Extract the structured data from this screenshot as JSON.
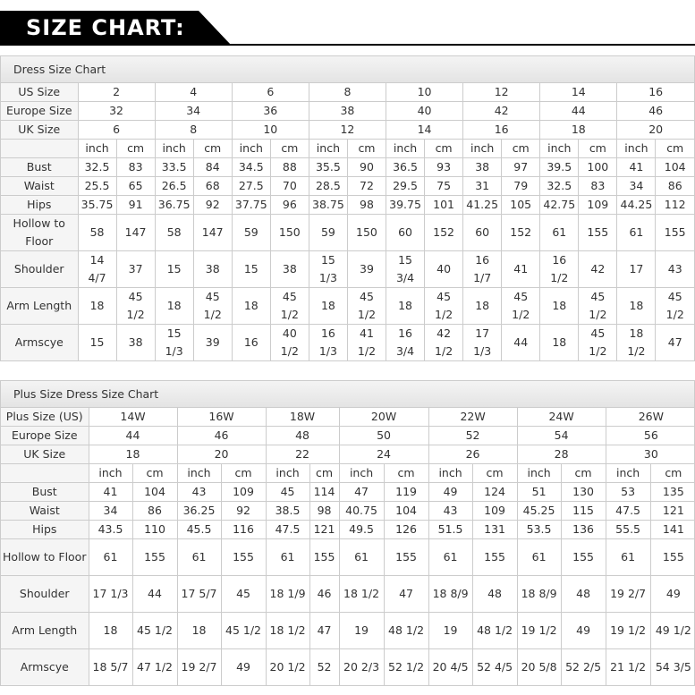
{
  "title": "SIZE CHART:",
  "tables": [
    {
      "heading": "Dress Size Chart",
      "group_rows": [
        {
          "label": "US Size",
          "values": [
            "2",
            "4",
            "6",
            "8",
            "10",
            "12",
            "14",
            "16"
          ]
        },
        {
          "label": "Europe Size",
          "values": [
            "32",
            "34",
            "36",
            "38",
            "40",
            "42",
            "44",
            "46"
          ]
        },
        {
          "label": "UK Size",
          "values": [
            "6",
            "8",
            "10",
            "12",
            "14",
            "16",
            "18",
            "20"
          ]
        }
      ],
      "units": [
        "inch",
        "cm"
      ],
      "rows": [
        {
          "label": "Bust",
          "values": [
            "32.5",
            "83",
            "33.5",
            "84",
            "34.5",
            "88",
            "35.5",
            "90",
            "36.5",
            "93",
            "38",
            "97",
            "39.5",
            "100",
            "41",
            "104"
          ]
        },
        {
          "label": "Waist",
          "values": [
            "25.5",
            "65",
            "26.5",
            "68",
            "27.5",
            "70",
            "28.5",
            "72",
            "29.5",
            "75",
            "31",
            "79",
            "32.5",
            "83",
            "34",
            "86"
          ]
        },
        {
          "label": "Hips",
          "values": [
            "35.75",
            "91",
            "36.75",
            "92",
            "37.75",
            "96",
            "38.75",
            "98",
            "39.75",
            "101",
            "41.25",
            "105",
            "42.75",
            "109",
            "44.25",
            "112"
          ]
        },
        {
          "label": "Hollow to Floor",
          "values": [
            "58",
            "147",
            "58",
            "147",
            "59",
            "150",
            "59",
            "150",
            "60",
            "152",
            "60",
            "152",
            "61",
            "155",
            "61",
            "155"
          ]
        },
        {
          "label": "Shoulder",
          "values": [
            "14 4/7",
            "37",
            "15",
            "38",
            "15",
            "38",
            "15 1/3",
            "39",
            "15 3/4",
            "40",
            "16 1/7",
            "41",
            "16 1/2",
            "42",
            "17",
            "43"
          ]
        },
        {
          "label": "Arm Length",
          "values": [
            "18",
            "45 1/2",
            "18",
            "45 1/2",
            "18",
            "45 1/2",
            "18",
            "45 1/2",
            "18",
            "45 1/2",
            "18",
            "45 1/2",
            "18",
            "45 1/2",
            "18",
            "45 1/2"
          ]
        },
        {
          "label": "Armscye",
          "values": [
            "15",
            "38",
            "15 1/3",
            "39",
            "16",
            "40 1/2",
            "16 1/3",
            "41 1/2",
            "16 3/4",
            "42 1/2",
            "17 1/3",
            "44",
            "18",
            "45 1/2",
            "18 1/2",
            "47"
          ]
        }
      ]
    },
    {
      "heading": "Plus Size Dress Size Chart",
      "group_rows": [
        {
          "label": "Plus Size (US)",
          "values": [
            "14W",
            "16W",
            "18W",
            "20W",
            "22W",
            "24W",
            "26W"
          ]
        },
        {
          "label": "Europe Size",
          "values": [
            "44",
            "46",
            "48",
            "50",
            "52",
            "54",
            "56"
          ]
        },
        {
          "label": "UK Size",
          "values": [
            "18",
            "20",
            "22",
            "24",
            "26",
            "28",
            "30"
          ]
        }
      ],
      "units": [
        "inch",
        "cm"
      ],
      "rows": [
        {
          "label": "Bust",
          "values": [
            "41",
            "104",
            "43",
            "109",
            "45",
            "114",
            "47",
            "119",
            "49",
            "124",
            "51",
            "130",
            "53",
            "135"
          ]
        },
        {
          "label": "Waist",
          "values": [
            "34",
            "86",
            "36.25",
            "92",
            "38.5",
            "98",
            "40.75",
            "104",
            "43",
            "109",
            "45.25",
            "115",
            "47.5",
            "121"
          ]
        },
        {
          "label": "Hips",
          "values": [
            "43.5",
            "110",
            "45.5",
            "116",
            "47.5",
            "121",
            "49.5",
            "126",
            "51.5",
            "131",
            "53.5",
            "136",
            "55.5",
            "141"
          ]
        },
        {
          "label": "Hollow to Floor",
          "values": [
            "61",
            "155",
            "61",
            "155",
            "61",
            "155",
            "61",
            "155",
            "61",
            "155",
            "61",
            "155",
            "61",
            "155"
          ]
        },
        {
          "label": "Shoulder",
          "values": [
            "17 1/3",
            "44",
            "17 5/7",
            "45",
            "18 1/9",
            "46",
            "18 1/2",
            "47",
            "18 8/9",
            "48",
            "18 8/9",
            "48",
            "19 2/7",
            "49"
          ]
        },
        {
          "label": "Arm Length",
          "values": [
            "18",
            "45 1/2",
            "18",
            "45 1/2",
            "18 1/2",
            "47",
            "19",
            "48 1/2",
            "19",
            "48 1/2",
            "19 1/2",
            "49",
            "19 1/2",
            "49 1/2"
          ]
        },
        {
          "label": "Armscye",
          "values": [
            "18 5/7",
            "47 1/2",
            "19 2/7",
            "49",
            "20 1/2",
            "52",
            "20 2/3",
            "52 1/2",
            "20 4/5",
            "52 4/5",
            "20 5/8",
            "52 2/5",
            "21 1/2",
            "54 3/5"
          ]
        }
      ]
    }
  ]
}
